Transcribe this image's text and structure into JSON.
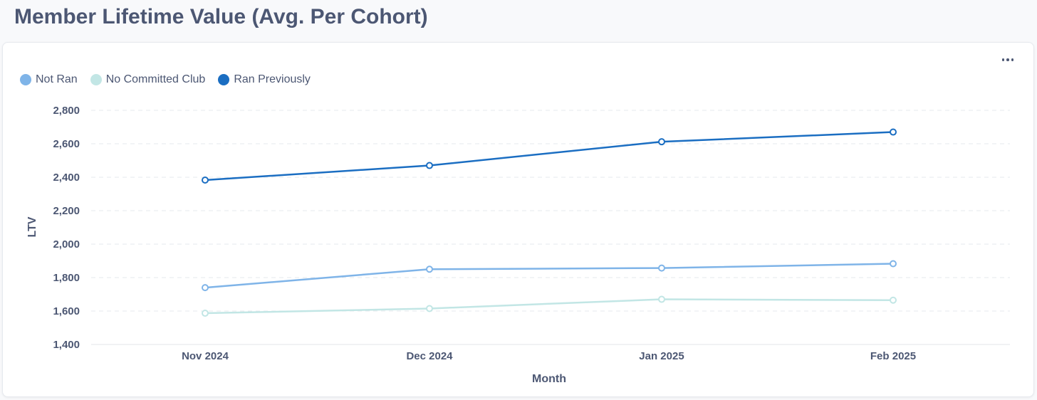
{
  "page": {
    "title": "Member Lifetime Value (Avg. Per Cohort)"
  },
  "card": {
    "menu_icon": "ellipsis-icon"
  },
  "chart_data": {
    "type": "line",
    "title": "Member Lifetime Value (Avg. Per Cohort)",
    "xlabel": "Month",
    "ylabel": "LTV",
    "categories": [
      "Nov 2024",
      "Dec 2024",
      "Jan 2025",
      "Feb 2025"
    ],
    "ylim": [
      1400,
      2800
    ],
    "yticks": [
      1400,
      1600,
      1800,
      2000,
      2200,
      2400,
      2600,
      2800
    ],
    "ytick_labels": [
      "1,400",
      "1,600",
      "1,800",
      "2,000",
      "2,200",
      "2,400",
      "2,600",
      "2,800"
    ],
    "grid": true,
    "legend_position": "top-left",
    "series": [
      {
        "name": "Not Ran",
        "color": "#7fb4e8",
        "values": [
          1740,
          1850,
          1857,
          1883
        ]
      },
      {
        "name": "No Committed Club",
        "color": "#c2e6e5",
        "values": [
          1587,
          1615,
          1670,
          1665
        ]
      },
      {
        "name": "Ran Previously",
        "color": "#1b6ec2",
        "values": [
          2383,
          2470,
          2612,
          2670
        ]
      }
    ]
  }
}
